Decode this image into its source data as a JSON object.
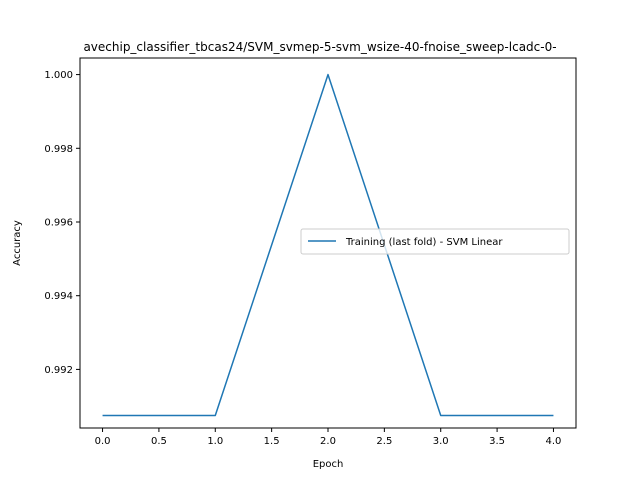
{
  "chart_data": {
    "type": "line",
    "title": "avechip_classifier_tbcas24/SVM_svmep-5-svm_wsize-40-fnoise_sweep-lcadc-0-",
    "xlabel": "Epoch",
    "ylabel": "Accuracy",
    "xlim": [
      -0.2,
      4.2
    ],
    "ylim": [
      0.99041,
      1.00045
    ],
    "xticks": [
      0.0,
      0.5,
      1.0,
      1.5,
      2.0,
      2.5,
      3.0,
      3.5,
      4.0
    ],
    "xtick_labels": [
      "0.0",
      "0.5",
      "1.0",
      "1.5",
      "2.0",
      "2.5",
      "3.0",
      "3.5",
      "4.0"
    ],
    "yticks": [
      0.992,
      0.994,
      0.996,
      0.998,
      1.0
    ],
    "ytick_labels": [
      "0.992",
      "0.994",
      "0.996",
      "0.998",
      "1.000"
    ],
    "grid": false,
    "legend_position": "center-right",
    "series": [
      {
        "name": "Training (last fold) - SVM Linear",
        "color": "#1f77b4",
        "x": [
          0,
          1,
          2,
          3,
          4
        ],
        "y": [
          0.99075,
          0.99075,
          1.0,
          0.99075,
          0.99075
        ]
      }
    ]
  }
}
